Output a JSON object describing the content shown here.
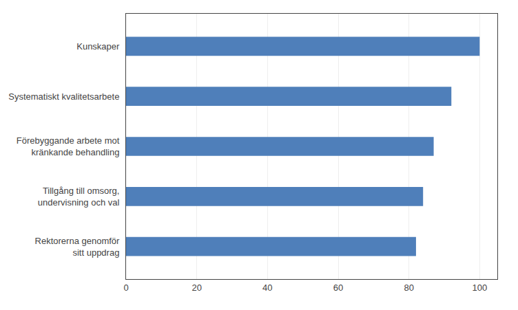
{
  "chart_data": {
    "type": "bar",
    "orientation": "horizontal",
    "categories": [
      "Rektorerna genomför\nsitt uppdrag",
      "Tillgång till omsorg,\nundervisning och val",
      "Förebyggande arbete mot\nkränkande behandling",
      "Systematiskt kvalitetsarbete",
      "Kunskaper"
    ],
    "values": [
      82,
      84,
      87,
      92,
      100
    ],
    "color": "#4f7fba",
    "xlim": [
      0,
      105
    ],
    "xticks": [
      0,
      20,
      40,
      60,
      80,
      100
    ],
    "grid": true
  }
}
